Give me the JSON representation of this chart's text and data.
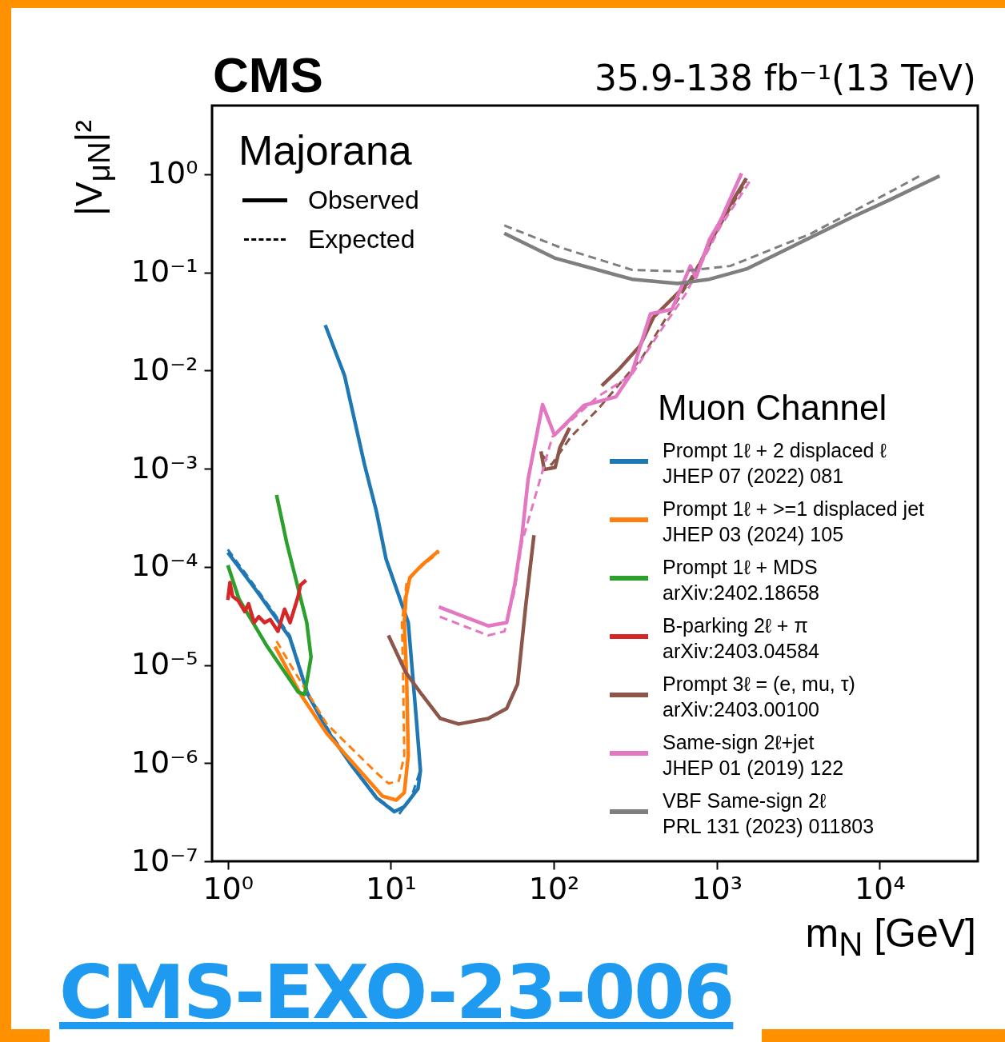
{
  "chart_data": {
    "type": "line",
    "title": "CMS",
    "subtitle": "35.9-138 fb⁻¹(13 TeV)",
    "xlabel": "m$_{N}$ [GeV]",
    "ylabel": "|V$_{μN}$|²",
    "legend_title": "Muon Channel",
    "legend": "right",
    "log": "xy",
    "annotations": [
      "Majorana",
      "Observed",
      "Expected",
      "CMS-EXO-23-006"
    ],
    "xlim": [
      0.8,
      40000
    ],
    "ylim": [
      1e-07,
      5
    ],
    "xticks": [
      {
        "value": 1,
        "label": "10⁰"
      },
      {
        "value": 10,
        "label": "10¹"
      },
      {
        "value": 100,
        "label": "10²"
      },
      {
        "value": 1000,
        "label": "10³"
      },
      {
        "value": 10000,
        "label": "10⁴"
      }
    ],
    "yticks": [
      {
        "value": 1e-07,
        "label": "10⁻⁷"
      },
      {
        "value": 1e-06,
        "label": "10⁻⁶"
      },
      {
        "value": 1e-05,
        "label": "10⁻⁵"
      },
      {
        "value": 0.0001,
        "label": "10⁻⁴"
      },
      {
        "value": 0.001,
        "label": "10⁻³"
      },
      {
        "value": 0.01,
        "label": "10⁻²"
      },
      {
        "value": 0.1,
        "label": "10⁻¹"
      },
      {
        "value": 1,
        "label": "10⁰"
      }
    ],
    "series": [
      {
        "name": "Prompt 1ℓ + 2 displaced ℓ\nJHEP 07 (2022) 081",
        "color": "#1f77b4",
        "line_style": "solid",
        "x": [
          1,
          1.5,
          2.4,
          3.1,
          4.2,
          5.8,
          8.2,
          10.5,
          12.1,
          14.7,
          15.2,
          14.3,
          12.8,
          9.35,
          8.15,
          6.9,
          5.2,
          3.96
        ],
        "values": [
          0.00014,
          5.7e-05,
          1.9e-05,
          5e-06,
          2e-06,
          9.3e-07,
          4.4e-07,
          3.2e-07,
          3.6e-07,
          5.5e-07,
          8.4e-07,
          3e-06,
          2.7e-05,
          0.00012,
          0.00037,
          0.0011,
          0.0089,
          0.029
        ]
      },
      {
        "color": "#1f77b4",
        "line_style": "dashed",
        "x": [
          1,
          1.5,
          2.4,
          3.1,
          4.2,
          5.8,
          8.2,
          11.2,
          13.3,
          15.2
        ],
        "values": [
          0.00015,
          6e-05,
          2e-05,
          5.2e-06,
          2.1e-06,
          9.5e-07,
          4.5e-07,
          3e-07,
          4.4e-07,
          8.5e-07
        ]
      },
      {
        "name": "Prompt 1ℓ + >=1 displaced jet\nJHEP 03 (2024) 105",
        "color": "#ff7f0e",
        "line_style": "solid",
        "x": [
          1.95,
          2.8,
          4.05,
          5.7,
          8.9,
          10.8,
          12.1,
          12.8,
          12.5,
          12.1,
          12.4,
          13.1,
          15.7,
          19.7
        ],
        "values": [
          1.54e-05,
          5e-06,
          2e-06,
          1.06e-06,
          4.6e-07,
          4.2e-07,
          5e-07,
          1.2e-06,
          7.7e-06,
          2.7e-05,
          5e-05,
          7.8e-05,
          0.000106,
          0.000146
        ]
      },
      {
        "color": "#ff7f0e",
        "line_style": "dashed",
        "x": [
          1.99,
          2.49,
          4.05,
          5.7,
          8.35,
          9.7,
          11.2,
          12.1,
          11.9,
          11.7,
          12.5,
          14.7,
          19.7
        ],
        "values": [
          1.75e-05,
          9.3e-06,
          2.5e-06,
          1.43e-06,
          7.7e-07,
          6.2e-07,
          6.6e-07,
          1.2e-06,
          7.7e-06,
          2.7e-05,
          6.9e-05,
          9.5e-05,
          0.00014
        ]
      },
      {
        "name": "Prompt 1ℓ + MDS\narXiv:2402.18658",
        "color": "#2ca02c",
        "line_style": "solid",
        "x": [
          1,
          1.17,
          1.72,
          2.7,
          2.96,
          3.24,
          3.05,
          2.3,
          1.99
        ],
        "values": [
          0.000104,
          4.7e-05,
          1.6e-05,
          5.3e-06,
          5e-06,
          1.2e-05,
          2.7e-05,
          0.000175,
          0.00054
        ]
      },
      {
        "name": "B-parking 2ℓ + π\narXiv:2403.04584",
        "color": "#d62728",
        "line_style": "solid",
        "x": [
          1,
          1.03,
          1.07,
          1.16,
          1.27,
          1.34,
          1.45,
          1.55,
          1.68,
          1.82,
          2.03,
          2.23,
          2.41,
          2.7,
          2.79,
          3.02
        ],
        "values": [
          4.6e-05,
          6.9e-05,
          5e-05,
          4.5e-05,
          3.5e-05,
          4.2e-05,
          2.7e-05,
          3.1e-05,
          2.7e-05,
          2.9e-05,
          2.2e-05,
          3.7e-05,
          2.7e-05,
          5e-05,
          6.5e-05,
          7.3e-05
        ]
      },
      {
        "name": "Prompt 3ℓ = (e, mu, τ)\narXiv:2403.00100",
        "color": "#8c564b",
        "line_style": "solid",
        "x": [
          9.67,
          12.4,
          15.5,
          20.1,
          26.1,
          39.6,
          51.4,
          60,
          67.4,
          75.6,
          80,
          83.5,
          87.4,
          102,
          109,
          125,
          150,
          197,
          250,
          338,
          410,
          575,
          720,
          1050,
          1520
        ],
        "values": [
          2e-05,
          8.3e-06,
          5e-06,
          2.85e-06,
          2.5e-06,
          2.85e-06,
          3.6e-06,
          6.4e-06,
          4.1e-05,
          0.00021,
          null,
          0.0015,
          0.00098,
          0.00103,
          0.00164,
          0.0026,
          null,
          0.007,
          0.0102,
          0.0178,
          0.035,
          0.061,
          0.089,
          0.33,
          0.91
        ]
      },
      {
        "color": "#8c564b",
        "line_style": "dashed",
        "x": [
          84,
          97,
          127,
          186,
          350,
          459,
          644,
          1050,
          1520
        ],
        "values": [
          0.0014,
          0.0011,
          0.0021,
          0.004,
          0.0137,
          0.029,
          0.07,
          0.3,
          0.85
        ]
      },
      {
        "name": "Same-sign 2ℓ+jet\nJHEP 01 (2019) 122",
        "color": "#e377c2",
        "line_style": "solid",
        "x": [
          19.7,
          39.6,
          51.4,
          57.5,
          63.7,
          69.6,
          85.4,
          101,
          153,
          241,
          302,
          392,
          531,
          689,
          746,
          903,
          1050,
          1420
        ],
        "values": [
          3.9e-05,
          2.5e-05,
          2.7e-05,
          6.5e-05,
          0.0002,
          0.00078,
          0.0045,
          0.0022,
          0.0044,
          0.0054,
          0.0095,
          0.0377,
          0.042,
          0.116,
          0.089,
          0.216,
          0.33,
          1.02
        ]
      },
      {
        "color": "#e377c2",
        "line_style": "dashed",
        "x": [
          20,
          39.6,
          49.9,
          57.5,
          63.7,
          98,
          186,
          300,
          450,
          644,
          1050,
          1600
        ],
        "values": [
          3.1e-05,
          2e-05,
          2.2e-05,
          5.7e-05,
          0.000175,
          0.0021,
          0.0054,
          0.009,
          0.025,
          0.06,
          0.29,
          0.85
        ]
      },
      {
        "name": "VBF Same-sign 2ℓ\nPRL 131 (2023) 011803",
        "color": "#7f7f7f",
        "line_style": "solid",
        "x": [
          49.7,
          101,
          302,
          575,
          903,
          1520,
          6590,
          11600,
          23300
        ],
        "values": [
          0.25,
          0.14,
          0.085,
          0.077,
          0.085,
          0.108,
          0.357,
          0.55,
          0.96
        ]
      },
      {
        "color": "#7f7f7f",
        "line_style": "dashed",
        "x": [
          49.7,
          109,
          302,
          595,
          1210,
          3750,
          11600,
          17600
        ],
        "values": [
          0.3,
          0.18,
          0.106,
          0.102,
          0.116,
          0.246,
          0.66,
          0.96
        ]
      }
    ]
  }
}
